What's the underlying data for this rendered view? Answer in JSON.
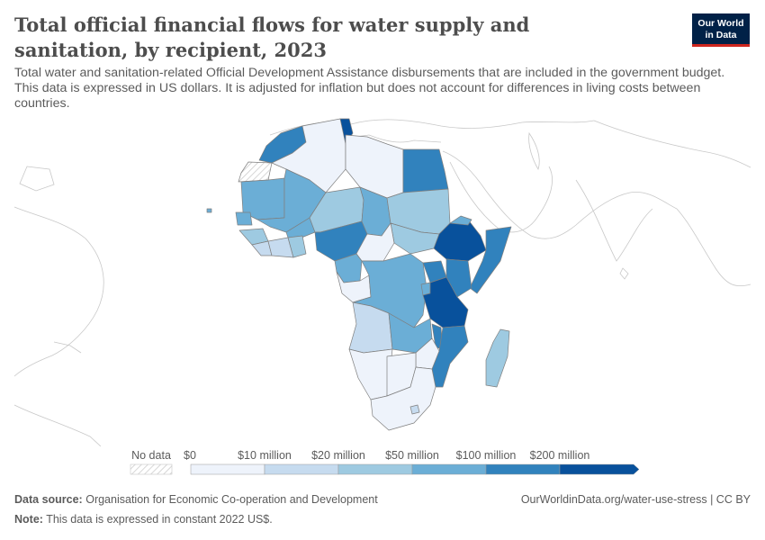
{
  "header": {
    "title": "Total official financial flows for water supply and sanitation, by recipient, 2023",
    "subtitle": "Total water and sanitation-related Official Development Assistance disbursements that are included in the government budget. This data is expressed in US dollars. It is adjusted for inflation but does not account for differences in living costs between countries.",
    "logo_line1": "Our World",
    "logo_line2": "in Data"
  },
  "legend": {
    "no_data_label": "No data",
    "bins": [
      {
        "label": "$0",
        "color": "#eef3fb"
      },
      {
        "label": "$10 million",
        "color": "#c6dbef"
      },
      {
        "label": "$20 million",
        "color": "#9ecae1"
      },
      {
        "label": "$50 million",
        "color": "#6baed6"
      },
      {
        "label": "$100 million",
        "color": "#3182bd"
      },
      {
        "label": "$200 million",
        "color": "#08519c"
      }
    ]
  },
  "colors": {
    "ocean_bg": "#ffffff",
    "outline": "#c8c8c8",
    "country_border": "#7f7f7f",
    "no_data": "#f3f3f3"
  },
  "map_regions": [
    {
      "name": "Morocco",
      "bin": 4
    },
    {
      "name": "Western Sahara",
      "bin": -1
    },
    {
      "name": "Algeria",
      "bin": 0
    },
    {
      "name": "Tunisia",
      "bin": 5
    },
    {
      "name": "Libya",
      "bin": 0
    },
    {
      "name": "Egypt",
      "bin": 4
    },
    {
      "name": "Mauritania",
      "bin": 3
    },
    {
      "name": "Mali",
      "bin": 3
    },
    {
      "name": "Niger",
      "bin": 2
    },
    {
      "name": "Chad",
      "bin": 3
    },
    {
      "name": "Sudan",
      "bin": 2
    },
    {
      "name": "Ethiopia",
      "bin": 5
    },
    {
      "name": "Somalia",
      "bin": 4
    },
    {
      "name": "Kenya",
      "bin": 4
    },
    {
      "name": "Tanzania",
      "bin": 5
    },
    {
      "name": "Nigeria",
      "bin": 4
    },
    {
      "name": "DR Congo",
      "bin": 3
    },
    {
      "name": "Angola",
      "bin": 1
    },
    {
      "name": "Zambia",
      "bin": 3
    },
    {
      "name": "Mozambique",
      "bin": 4
    },
    {
      "name": "Madagascar",
      "bin": 2
    },
    {
      "name": "South Africa",
      "bin": 0
    },
    {
      "name": "Namibia",
      "bin": 0
    },
    {
      "name": "Botswana",
      "bin": 0
    }
  ],
  "footer": {
    "source_label": "Data source:",
    "source_text": "Organisation for Economic Co-operation and Development",
    "note_label": "Note:",
    "note_text": "This data is expressed in constant 2022 US$.",
    "url": "OurWorldinData.org/water-use-stress | CC BY"
  }
}
